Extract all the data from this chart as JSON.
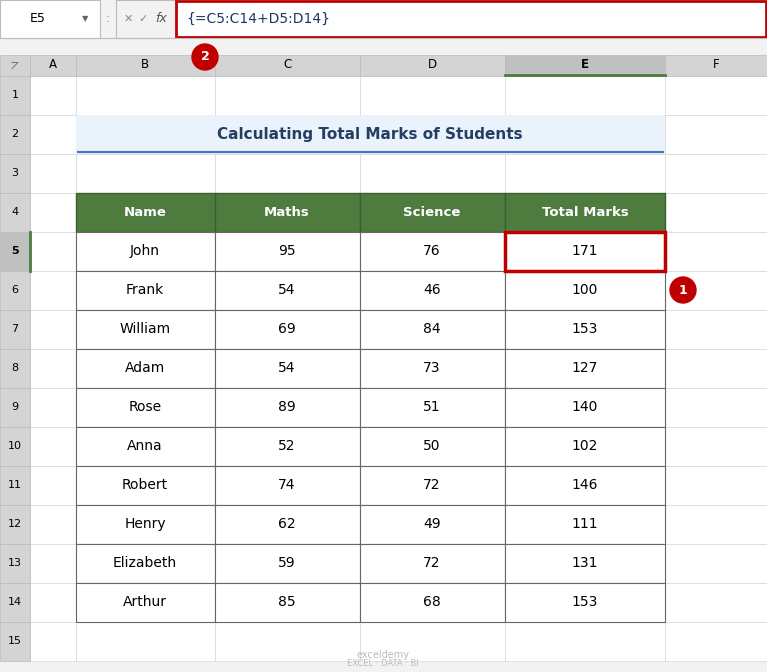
{
  "title": "Calculating Total Marks of Students",
  "formula_bar_text": "{=C5:C14+D5:D14}",
  "cell_ref": "E5",
  "headers": [
    "Name",
    "Maths",
    "Science",
    "Total Marks"
  ],
  "rows": [
    [
      "John",
      "95",
      "76",
      "171"
    ],
    [
      "Frank",
      "54",
      "46",
      "100"
    ],
    [
      "William",
      "69",
      "84",
      "153"
    ],
    [
      "Adam",
      "54",
      "73",
      "127"
    ],
    [
      "Rose",
      "89",
      "51",
      "140"
    ],
    [
      "Anna",
      "52",
      "50",
      "102"
    ],
    [
      "Robert",
      "74",
      "72",
      "146"
    ],
    [
      "Henry",
      "62",
      "49",
      "111"
    ],
    [
      "Elizabeth",
      "59",
      "72",
      "131"
    ],
    [
      "Arthur",
      "85",
      "68",
      "153"
    ]
  ],
  "header_bg": "#4E7C3F",
  "header_fg": "#FFFFFF",
  "row_bg": "#FFFFFF",
  "row_fg": "#000000",
  "grid_color": "#5B5B5B",
  "col_header_bg": "#D4D4D4",
  "title_bg": "#EAF2FB",
  "title_fg": "#243F60",
  "formula_bar_border": "#C00000",
  "active_cell_border": "#C00000",
  "active_col_accent": "#4E7C3F",
  "excel_bg": "#F2F2F2",
  "cell_bg": "#FFFFFF",
  "watermark_line1": "exceldemy",
  "watermark_line2": "EXCEL · DATA · BI",
  "badge_color": "#C00000",
  "formula_text_color": "#1F3864",
  "note_border_color": "#D0D0D0",
  "title_underline_color": "#4472C4"
}
